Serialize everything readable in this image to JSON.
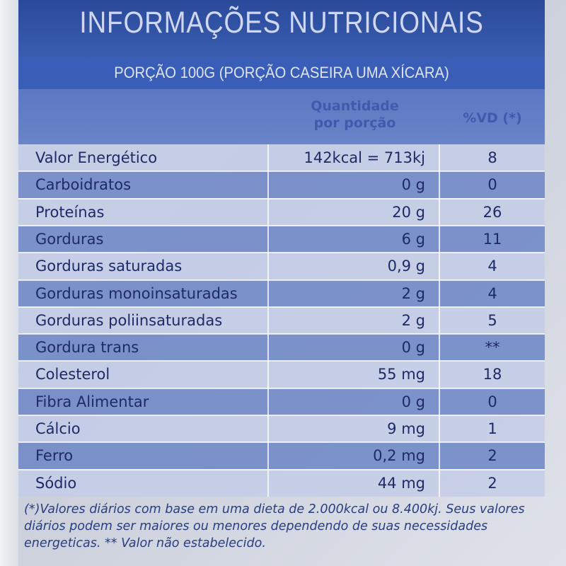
{
  "title": "INFORMAÇÕES NUTRICIONAIS",
  "serving": "PORÇÃO 100G (PORÇÃO CASEIRA UMA XÍCARA)",
  "headers": {
    "quantity_line1": "Quantidade",
    "quantity_line2": "por porção",
    "dv": "%VD (*)"
  },
  "rows": [
    {
      "name": "Valor Energético",
      "qty": "142kcal = 713kj",
      "dv": "8"
    },
    {
      "name": "Carboidratos",
      "qty": "0 g",
      "dv": "0"
    },
    {
      "name": "Proteínas",
      "qty": "20 g",
      "dv": "26"
    },
    {
      "name": "Gorduras",
      "qty": "6 g",
      "dv": "11"
    },
    {
      "name": "Gorduras saturadas",
      "qty": "0,9 g",
      "dv": "4"
    },
    {
      "name": "Gorduras monoinsaturadas",
      "qty": "2 g",
      "dv": "4"
    },
    {
      "name": "Gorduras poliinsaturadas",
      "qty": "2 g",
      "dv": "5"
    },
    {
      "name": "Gordura trans",
      "qty": "0 g",
      "dv": "**"
    },
    {
      "name": "Colesterol",
      "qty": "55 mg",
      "dv": "18"
    },
    {
      "name": "Fibra Alimentar",
      "qty": "0 g",
      "dv": "0"
    },
    {
      "name": "Cálcio",
      "qty": "9 mg",
      "dv": "1"
    },
    {
      "name": "Ferro",
      "qty": "0,2 mg",
      "dv": "2"
    },
    {
      "name": "Sódio",
      "qty": "44 mg",
      "dv": "2"
    }
  ],
  "footnote": "(*)Valores diários com base em uma dieta de 2.000kcal ou 8.400kj. Seus valores diários podem ser maiores ou menores dependendo de suas necessidades energeticas. ** Valor não estabelecido."
}
